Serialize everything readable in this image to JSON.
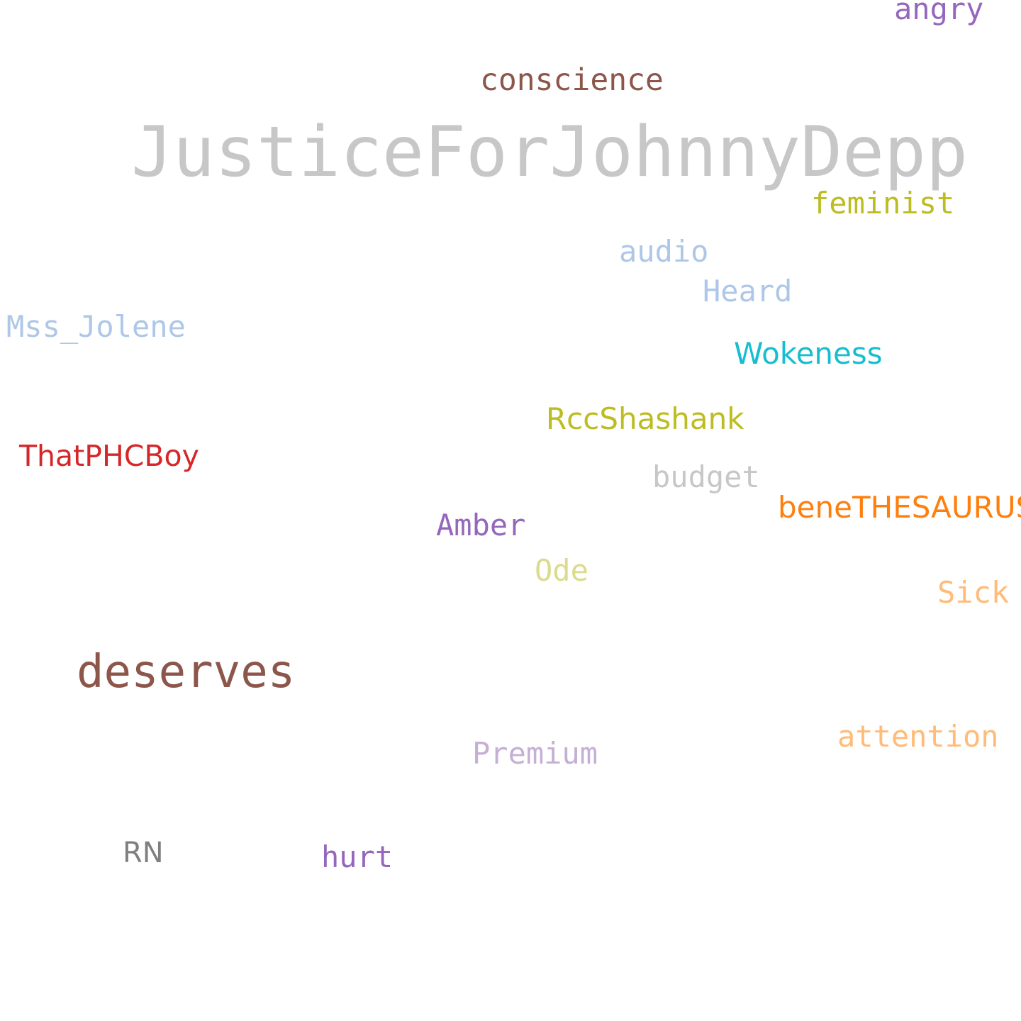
{
  "words": {
    "justice": {
      "text": "JusticeForJohnnyDepp",
      "color": "#c7c7c7"
    },
    "conscience": {
      "text": "conscience",
      "color": "#8c564b"
    },
    "angry": {
      "text": "angry",
      "color": "#9467bd"
    },
    "feminist": {
      "text": "feminist",
      "color": "#bcbd22"
    },
    "audio": {
      "text": "audio",
      "color": "#aec7e8"
    },
    "heard": {
      "text": "Heard",
      "color": "#aec7e8"
    },
    "mss_jolene": {
      "text": "Mss_Jolene",
      "color": "#aec7e8"
    },
    "wokeness": {
      "text": "Wokeness",
      "color": "#17becf"
    },
    "rccshashank": {
      "text": "RccShashank",
      "color": "#bcbd22"
    },
    "thatphcboy": {
      "text": "ThatPHCBoy",
      "color": "#d62728"
    },
    "budget": {
      "text": "budget",
      "color": "#c7c7c7"
    },
    "benethesaurus": {
      "text": "beneTHESAURUS",
      "color": "#ff7f0e"
    },
    "amber": {
      "text": "Amber",
      "color": "#9467bd"
    },
    "ode": {
      "text": "Ode",
      "color": "#dbdb8d"
    },
    "sick": {
      "text": "Sick",
      "color": "#ffbb78"
    },
    "deserves": {
      "text": "deserves",
      "color": "#8c564b"
    },
    "attention": {
      "text": "attention",
      "color": "#ffbb78"
    },
    "premium": {
      "text": "Premium",
      "color": "#c5b0d5"
    },
    "rn": {
      "text": "RN",
      "color": "#7f7f7f"
    },
    "hurt": {
      "text": "hurt",
      "color": "#9467bd"
    }
  },
  "background_color": "#ffffff"
}
